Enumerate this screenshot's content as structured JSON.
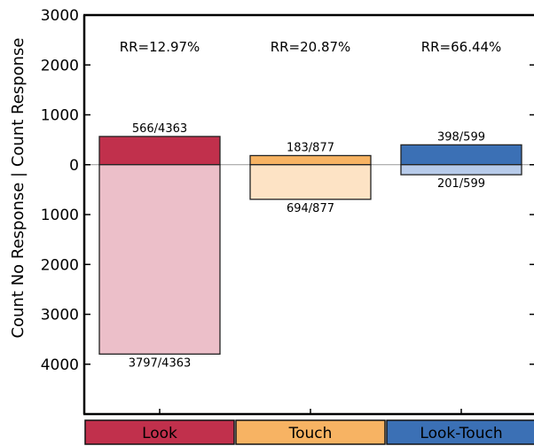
{
  "chart_data": {
    "type": "bar",
    "ylabel": "Count No Response | Count Response",
    "ylim": [
      -5000,
      3000
    ],
    "yticks": [
      {
        "value": 3000,
        "label": "3000"
      },
      {
        "value": 2000,
        "label": "2000"
      },
      {
        "value": 1000,
        "label": "1000"
      },
      {
        "value": 0,
        "label": "0"
      },
      {
        "value": -1000,
        "label": "1000"
      },
      {
        "value": -2000,
        "label": "2000"
      },
      {
        "value": -3000,
        "label": "3000"
      },
      {
        "value": -4000,
        "label": "4000"
      }
    ],
    "categories": [
      "Look",
      "Touch",
      "Look-Touch"
    ],
    "category_colors": [
      "#c1304c",
      "#f7b363",
      "#3b70b5"
    ],
    "series": [
      {
        "name": "Response",
        "values": [
          566,
          183,
          398
        ],
        "labels": [
          "566/4363",
          "183/877",
          "398/599"
        ],
        "colors": [
          "#c1304c",
          "#f7b363",
          "#3b70b5"
        ]
      },
      {
        "name": "No Response",
        "values": [
          -3797,
          -694,
          -201
        ],
        "labels": [
          "3797/4363",
          "694/877",
          "201/599"
        ],
        "colors": [
          "#ecbfc9",
          "#fde3c5",
          "#b7cbea"
        ]
      }
    ],
    "annotations": [
      "RR=12.97%",
      "RR=20.87%",
      "RR=66.44%"
    ],
    "grid": false
  }
}
